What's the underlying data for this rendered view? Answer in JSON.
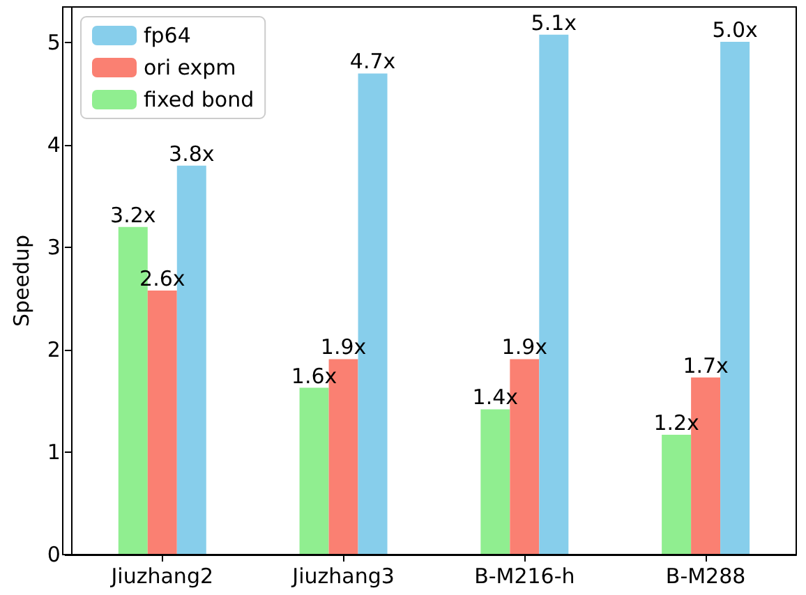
{
  "chart_data": {
    "type": "bar",
    "ylabel": "Speedup",
    "categories": [
      "Jiuzhang2",
      "Jiuzhang3",
      "B-M216-h",
      "B-M288"
    ],
    "series": [
      {
        "name": "fixed bond",
        "color": "#90ee90",
        "values": [
          3.2,
          1.63,
          1.42,
          1.17
        ],
        "value_labels": [
          "3.2x",
          "1.6x",
          "1.4x",
          "1.2x"
        ]
      },
      {
        "name": "ori expm",
        "color": "#fa8072",
        "values": [
          2.58,
          1.91,
          1.91,
          1.73
        ],
        "value_labels": [
          "2.6x",
          "1.9x",
          "1.9x",
          "1.7x"
        ]
      },
      {
        "name": "fp64",
        "color": "#87ceeb",
        "values": [
          3.8,
          4.7,
          5.08,
          5.01
        ],
        "value_labels": [
          "3.8x",
          "4.7x",
          "5.1x",
          "5.0x"
        ]
      }
    ],
    "ylim": [
      0,
      5.35
    ],
    "yticks": [
      0,
      1,
      2,
      3,
      4,
      5
    ],
    "grid": false,
    "legend": "top left"
  }
}
